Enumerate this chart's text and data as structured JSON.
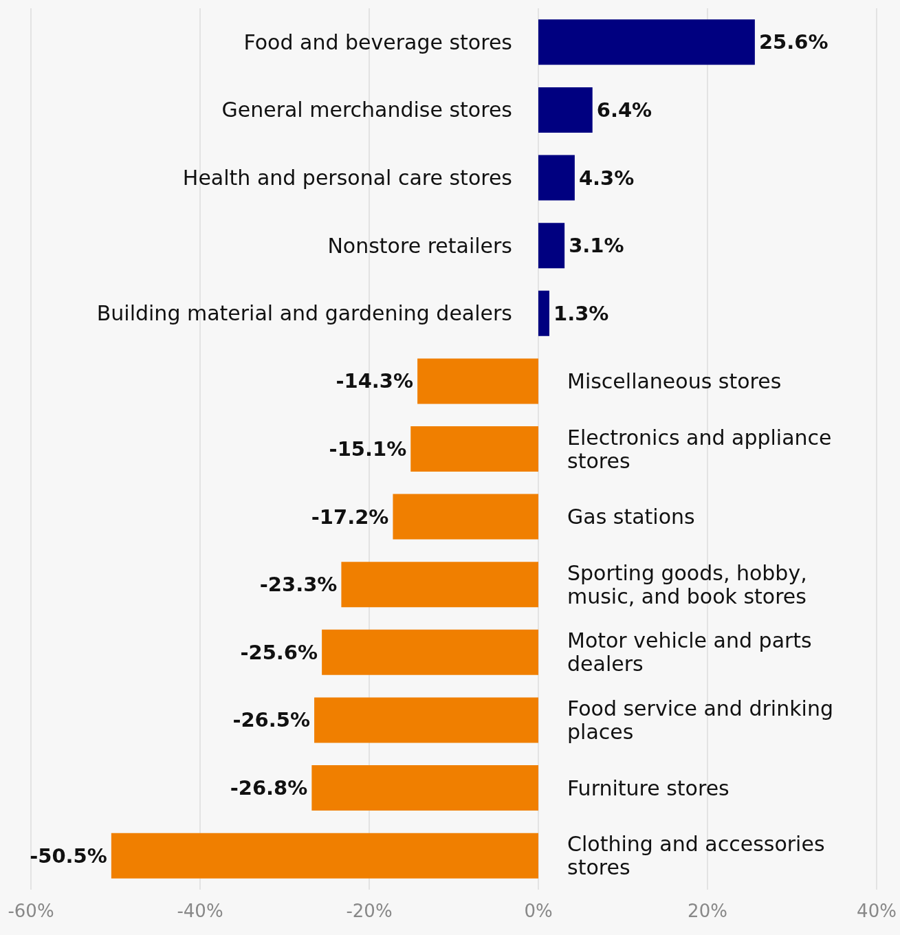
{
  "chart_data": {
    "type": "bar",
    "orientation": "horizontal",
    "categories": [
      "Food and beverage stores",
      "General merchandise stores",
      "Health and personal care stores",
      "Nonstore retailers",
      "Building material and gardening dealers",
      "Miscellaneous stores",
      "Electronics and appliance stores",
      "Gas stations",
      "Sporting goods, hobby, music, and book stores",
      "Motor vehicle and parts dealers",
      "Food service and drinking places",
      "Furniture stores",
      "Clothing and accessories stores"
    ],
    "values": [
      25.6,
      6.4,
      4.3,
      3.1,
      1.3,
      -14.3,
      -15.1,
      -17.2,
      -23.3,
      -25.6,
      -26.5,
      -26.8,
      -50.5
    ],
    "colors": [
      "#000080",
      "#000080",
      "#000080",
      "#000080",
      "#000080",
      "#f07f00",
      "#f07f00",
      "#f07f00",
      "#f07f00",
      "#f07f00",
      "#f07f00",
      "#f07f00",
      "#f07f00"
    ],
    "value_labels": [
      "25.6%",
      "6.4%",
      "4.3%",
      "3.1%",
      "1.3%",
      "-14.3%",
      "-15.1%",
      "-17.2%",
      "-23.3%",
      "-25.6%",
      "-26.5%",
      "-26.8%",
      "-50.5%"
    ],
    "xlim": [
      -60,
      40
    ],
    "xticks": [
      {
        "value": -60,
        "label": "-60%"
      },
      {
        "value": -40,
        "label": "-40%"
      },
      {
        "value": -20,
        "label": "-20%"
      },
      {
        "value": 0,
        "label": "0%"
      },
      {
        "value": 20,
        "label": "20%"
      },
      {
        "value": 40,
        "label": "40%"
      }
    ],
    "grid": "x"
  }
}
